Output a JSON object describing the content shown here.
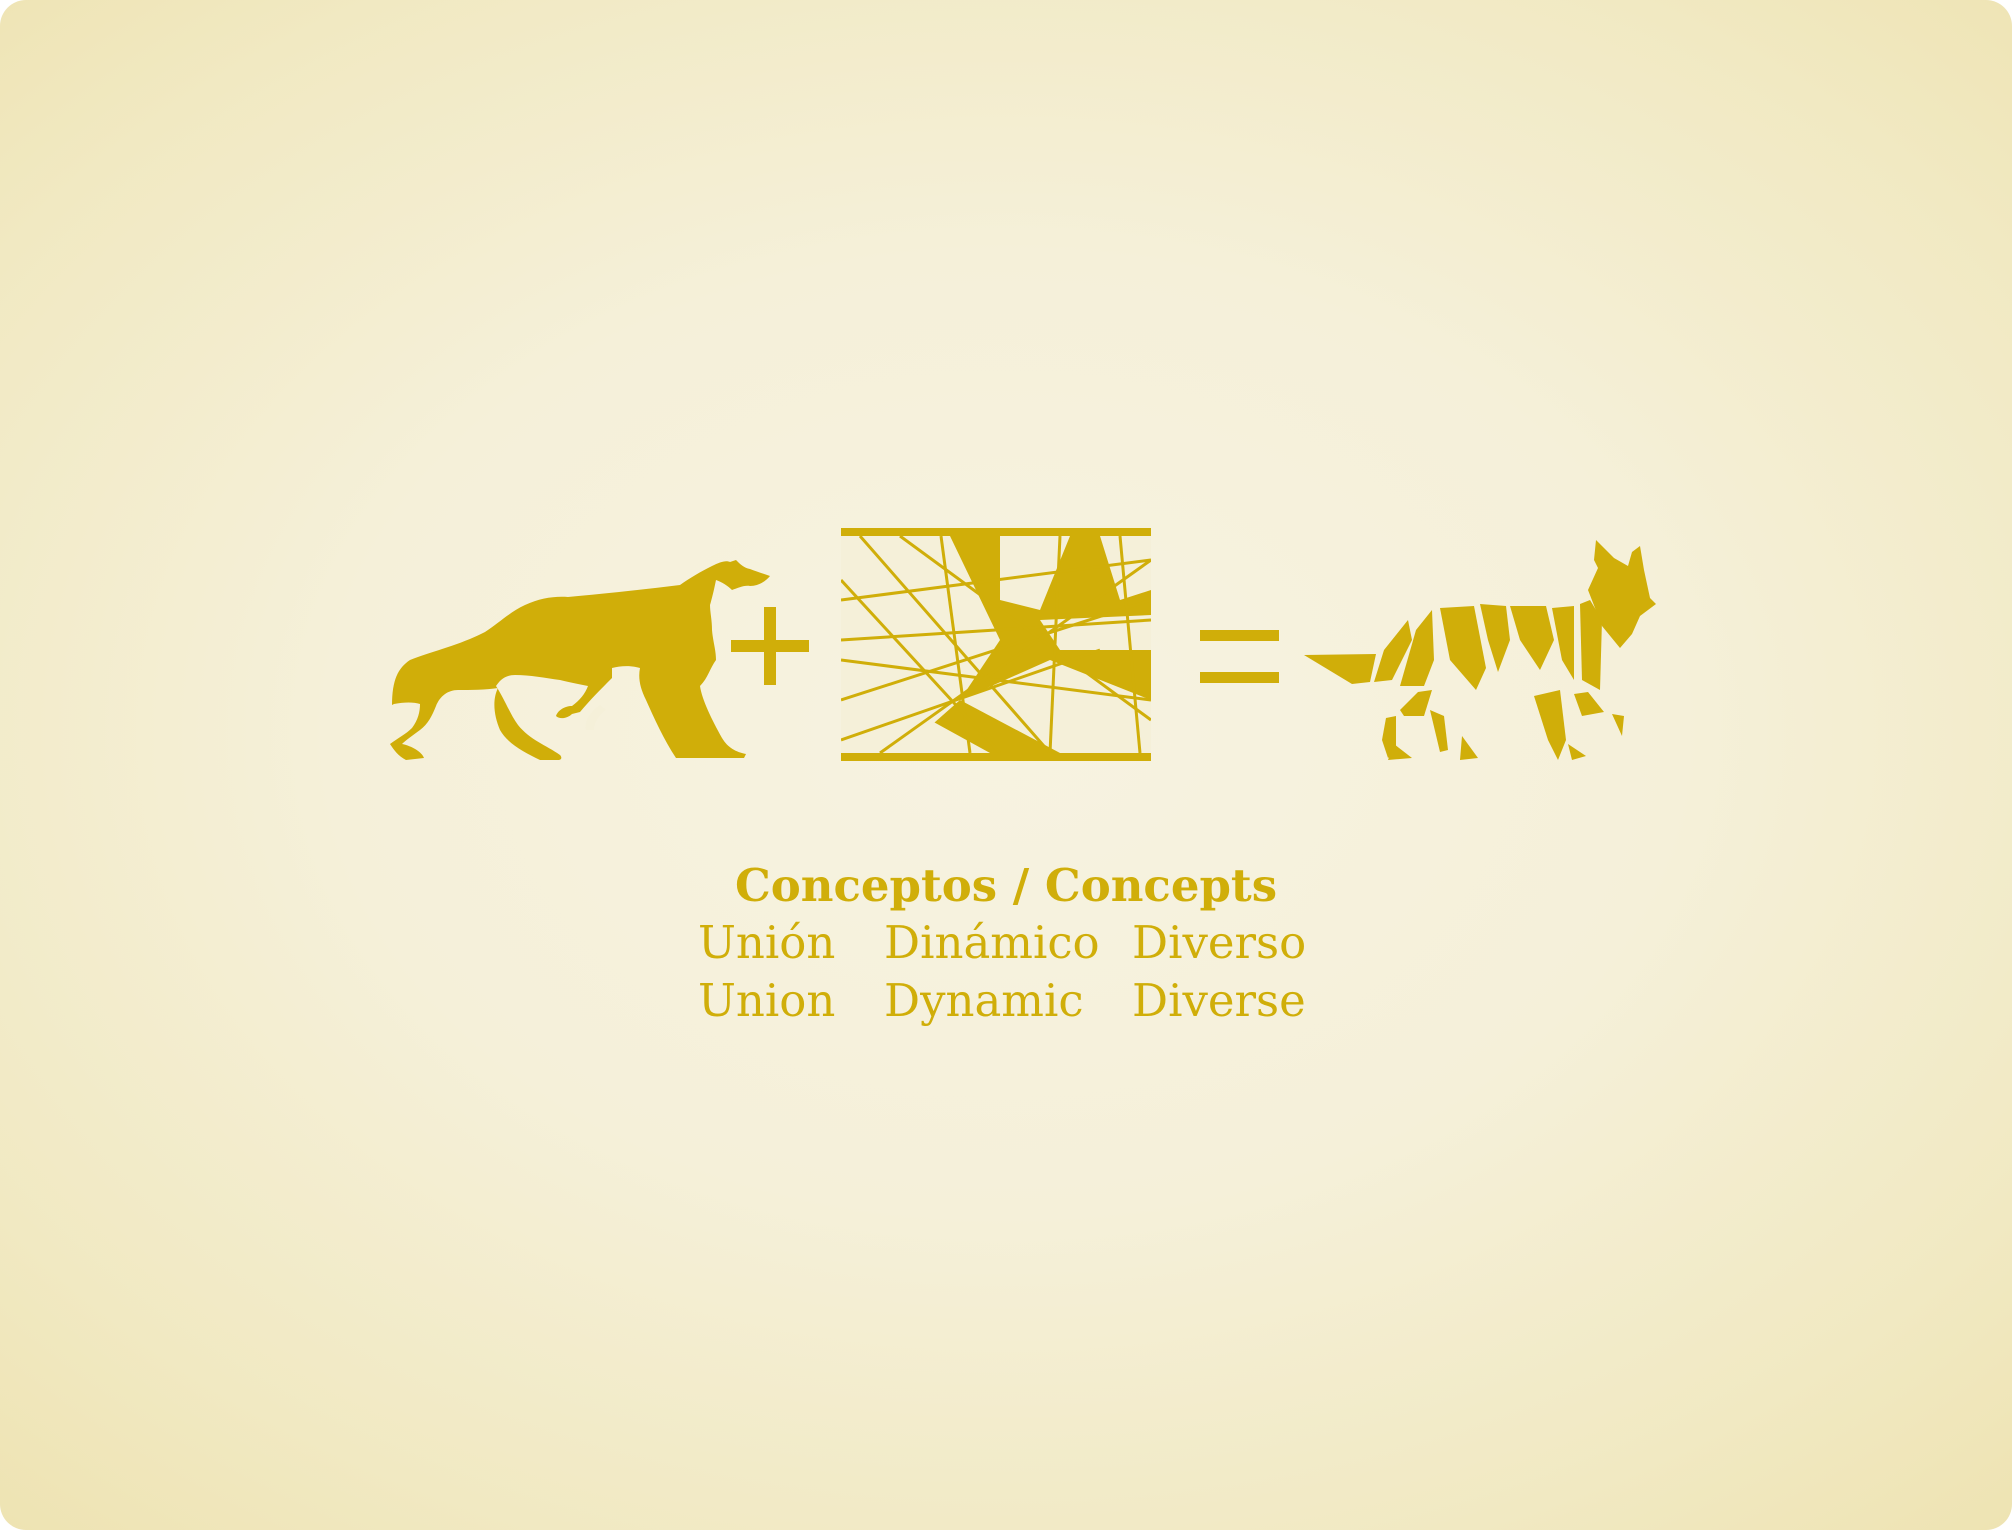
{
  "colors": {
    "accent": "#d0ae09",
    "background_center": "#f7f3e1",
    "background_edge": "#eee3b2"
  },
  "equation": {
    "items": [
      {
        "name": "running-wolf-icon"
      },
      {
        "symbol": "+"
      },
      {
        "name": "abstract-lines-pattern-icon"
      },
      {
        "symbol": "="
      },
      {
        "name": "geometric-wolf-icon"
      }
    ]
  },
  "concepts": {
    "title": "Conceptos / Concepts",
    "spanish": [
      "Unión",
      "Dinámico",
      "Diverso"
    ],
    "english": [
      "Union",
      "Dynamic",
      "Diverse"
    ]
  }
}
